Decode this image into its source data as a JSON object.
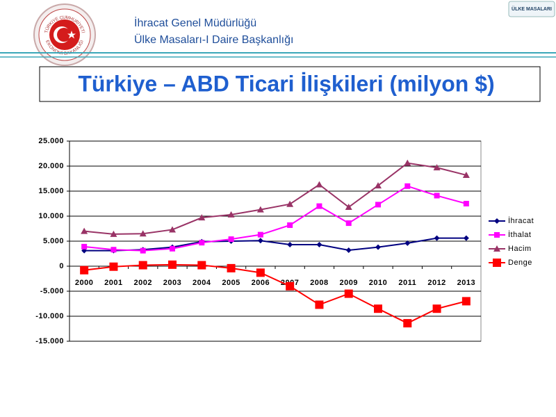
{
  "header": {
    "line1": "İhracat Genel Müdürlüğü",
    "line2": "Ülke Masaları-I Daire Başkanlığı",
    "logo_top": "TÜRKİYE CUMHURİYETİ",
    "logo_bottom": "EKONOMİ BAKANLIĞI",
    "badge": "ÜLKE MASALARI"
  },
  "slide_title": "Türkiye – ABD Ticari İlişkileri (milyon $)",
  "chart_data": {
    "type": "line",
    "categories": [
      "2000",
      "2001",
      "2002",
      "2003",
      "2004",
      "2005",
      "2006",
      "2007",
      "2008",
      "2009",
      "2010",
      "2011",
      "2012",
      "2013"
    ],
    "series": [
      {
        "name": "İhracat",
        "color": "#000080",
        "marker": "diamond",
        "values": [
          3100,
          3100,
          3300,
          3800,
          4900,
          5000,
          5100,
          4300,
          4300,
          3200,
          3800,
          4600,
          5600,
          5600
        ]
      },
      {
        "name": "İthalat",
        "color": "#ff00ff",
        "marker": "square",
        "values": [
          3900,
          3300,
          3100,
          3500,
          4700,
          5400,
          6300,
          8200,
          12000,
          8600,
          12300,
          16000,
          14100,
          12500
        ]
      },
      {
        "name": "Hacim",
        "color": "#993366",
        "marker": "triangle",
        "values": [
          7000,
          6400,
          6500,
          7300,
          9700,
          10300,
          11300,
          12400,
          16300,
          11800,
          16100,
          20600,
          19700,
          18200
        ]
      },
      {
        "name": "Denge",
        "color": "#ff0000",
        "marker": "bigsquare",
        "values": [
          -800,
          -100,
          200,
          300,
          200,
          -400,
          -1300,
          -4000,
          -7700,
          -5500,
          -8500,
          -11400,
          -8500,
          -7000
        ]
      }
    ],
    "ylim": [
      -15000,
      25000
    ],
    "yticks": [
      {
        "value": -15000,
        "label": "-15.000"
      },
      {
        "value": -10000,
        "label": "-10.000"
      },
      {
        "value": -5000,
        "label": "-5.000"
      },
      0,
      {
        "value": 5000,
        "label": "5.000"
      },
      {
        "value": 10000,
        "label": "10.000"
      },
      {
        "value": 15000,
        "label": "15.000"
      },
      {
        "value": 20000,
        "label": "20.000"
      },
      {
        "value": 25000,
        "label": "25.000"
      }
    ],
    "grid": true,
    "legend": "right"
  }
}
